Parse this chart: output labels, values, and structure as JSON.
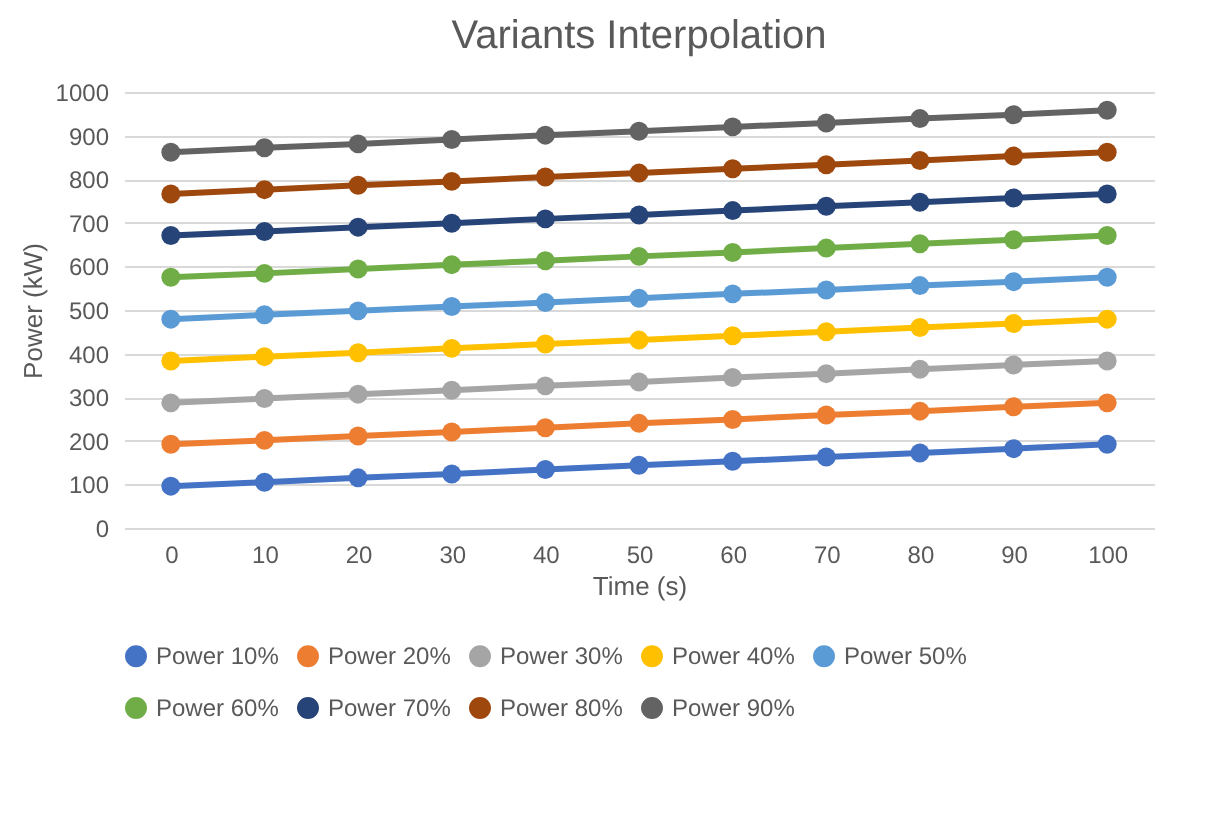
{
  "chart_data": {
    "type": "line",
    "title": "Variants Interpolation",
    "xlabel": "Time (s)",
    "ylabel": "Power (kW)",
    "categories": [
      "0",
      "10",
      "20",
      "30",
      "40",
      "50",
      "60",
      "70",
      "80",
      "90",
      "100"
    ],
    "series": [
      {
        "name": "Power 10%",
        "color": "#4472c4",
        "values": [
          96,
          105,
          115,
          124,
          134,
          144,
          153,
          163,
          172,
          182,
          192
        ]
      },
      {
        "name": "Power 20%",
        "color": "#ed7d31",
        "values": [
          192,
          201,
          211,
          220,
          230,
          240,
          249,
          259,
          268,
          278,
          287
        ]
      },
      {
        "name": "Power 30%",
        "color": "#a5a5a5",
        "values": [
          287,
          297,
          307,
          316,
          326,
          335,
          345,
          354,
          364,
          374,
          383
        ]
      },
      {
        "name": "Power 40%",
        "color": "#ffc000",
        "values": [
          383,
          393,
          402,
          412,
          422,
          431,
          441,
          450,
          460,
          469,
          479
        ]
      },
      {
        "name": "Power 50%",
        "color": "#5b9bd5",
        "values": [
          479,
          489,
          498,
          508,
          517,
          527,
          537,
          546,
          556,
          565,
          575
        ]
      },
      {
        "name": "Power 60%",
        "color": "#70ad47",
        "values": [
          575,
          584,
          594,
          604,
          613,
          623,
          632,
          642,
          652,
          661,
          671
        ]
      },
      {
        "name": "Power 70%",
        "color": "#264478",
        "values": [
          671,
          680,
          690,
          699,
          709,
          718,
          728,
          738,
          747,
          757,
          766
        ]
      },
      {
        "name": "Power 80%",
        "color": "#9e480e",
        "values": [
          766,
          776,
          786,
          795,
          805,
          814,
          824,
          833,
          843,
          853,
          862
        ]
      },
      {
        "name": "Power 90%",
        "color": "#636363",
        "values": [
          862,
          872,
          881,
          891,
          901,
          910,
          920,
          929,
          939,
          948,
          958
        ]
      }
    ],
    "ylim": [
      0,
      1000
    ],
    "yticks": [
      0,
      100,
      200,
      300,
      400,
      500,
      600,
      700,
      800,
      900,
      1000
    ],
    "grid": "y",
    "legend": "bottom",
    "marker": "circle"
  }
}
